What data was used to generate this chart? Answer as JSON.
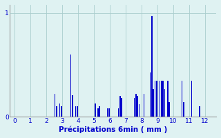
{
  "xlabel": "Précipitations 6min ( mm )",
  "background_color": "#dff2f2",
  "bar_color": "#0000cc",
  "grid_color": "#aacece",
  "xlim": [
    -0.3,
    12.7
  ],
  "ylim": [
    0,
    1.08
  ],
  "yticks": [
    0,
    1
  ],
  "xticks": [
    0,
    1,
    2,
    3,
    4,
    5,
    6,
    7,
    8,
    9,
    10,
    11,
    12
  ],
  "bar_positions": [
    2.55,
    2.65,
    2.85,
    2.95,
    3.55,
    3.65,
    3.85,
    3.95,
    5.1,
    5.25,
    5.35,
    5.85,
    5.95,
    6.55,
    6.65,
    6.75,
    7.55,
    7.65,
    7.75,
    7.85,
    8.15,
    8.55,
    8.65,
    8.75,
    8.85,
    8.95,
    9.15,
    9.25,
    9.35,
    9.45,
    9.65,
    9.75,
    10.55,
    10.65,
    11.15,
    11.65
  ],
  "bar_heights": [
    0.22,
    0.1,
    0.13,
    0.1,
    0.6,
    0.21,
    0.1,
    0.1,
    0.13,
    0.08,
    0.1,
    0.08,
    0.08,
    0.08,
    0.2,
    0.18,
    0.18,
    0.22,
    0.2,
    0.12,
    0.22,
    0.43,
    0.97,
    0.27,
    0.35,
    0.35,
    0.35,
    0.35,
    0.35,
    0.27,
    0.35,
    0.14,
    0.35,
    0.14,
    0.35,
    0.1
  ],
  "bar_width": 0.07
}
